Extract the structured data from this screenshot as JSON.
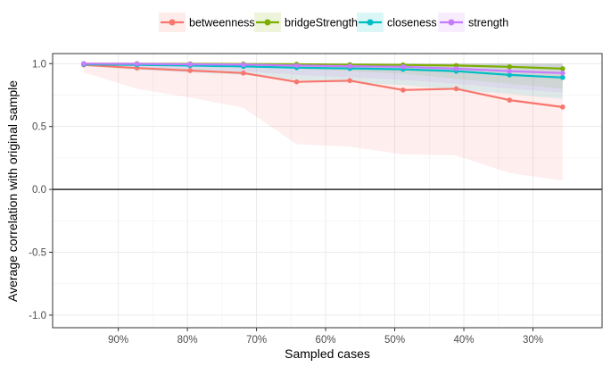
{
  "chart_data": {
    "type": "line",
    "title": "",
    "xlabel": "Sampled cases",
    "ylabel": "Average correlation with original sample",
    "x_reversed": true,
    "xlim": [
      0.2,
      0.995
    ],
    "ylim": [
      -1.1,
      1.08
    ],
    "x_ticks": [
      {
        "value": 0.9,
        "label": "90%"
      },
      {
        "value": 0.8,
        "label": "80%"
      },
      {
        "value": 0.7,
        "label": "70%"
      },
      {
        "value": 0.6,
        "label": "60%"
      },
      {
        "value": 0.5,
        "label": "50%"
      },
      {
        "value": 0.4,
        "label": "40%"
      },
      {
        "value": 0.3,
        "label": "30%"
      }
    ],
    "y_ticks": [
      {
        "value": 1.0,
        "label": "1.0"
      },
      {
        "value": 0.5,
        "label": "0.5"
      },
      {
        "value": 0.0,
        "label": "0.0"
      },
      {
        "value": -0.5,
        "label": "-0.5"
      },
      {
        "value": -1.0,
        "label": "-1.0"
      }
    ],
    "hline": 0,
    "legend_position": "top",
    "x": [
      0.95,
      0.873,
      0.796,
      0.719,
      0.642,
      0.565,
      0.488,
      0.411,
      0.334,
      0.257
    ],
    "series": [
      {
        "name": "betweenness",
        "color": "#F8766D",
        "values": [
          0.99,
          0.965,
          0.945,
          0.925,
          0.855,
          0.865,
          0.79,
          0.8,
          0.71,
          0.655
        ],
        "lower": [
          0.93,
          0.8,
          0.73,
          0.65,
          0.36,
          0.34,
          0.28,
          0.27,
          0.13,
          0.07
        ],
        "upper": [
          1.0,
          1.0,
          1.0,
          1.0,
          1.0,
          1.0,
          1.0,
          1.0,
          1.0,
          1.0
        ]
      },
      {
        "name": "bridgeStrength",
        "color": "#7CAE00",
        "values": [
          1.0,
          1.0,
          0.998,
          0.997,
          0.995,
          0.992,
          0.99,
          0.985,
          0.975,
          0.96
        ],
        "lower": [
          1.0,
          0.99,
          0.985,
          0.975,
          0.96,
          0.94,
          0.92,
          0.88,
          0.84,
          0.8
        ],
        "upper": [
          1.0,
          1.0,
          1.0,
          1.0,
          1.0,
          1.0,
          1.0,
          1.0,
          1.0,
          1.0
        ]
      },
      {
        "name": "closeness",
        "color": "#00BFC4",
        "values": [
          0.995,
          0.99,
          0.985,
          0.978,
          0.968,
          0.962,
          0.955,
          0.94,
          0.91,
          0.89
        ],
        "lower": [
          0.98,
          0.95,
          0.93,
          0.91,
          0.87,
          0.85,
          0.83,
          0.79,
          0.76,
          0.72
        ],
        "upper": [
          1.0,
          1.0,
          1.0,
          1.0,
          1.0,
          1.0,
          1.0,
          1.0,
          1.0,
          1.0
        ]
      },
      {
        "name": "strength",
        "color": "#C77CFF",
        "values": [
          1.0,
          0.998,
          0.995,
          0.992,
          0.985,
          0.98,
          0.975,
          0.96,
          0.94,
          0.925
        ],
        "lower": [
          0.99,
          0.97,
          0.955,
          0.94,
          0.91,
          0.89,
          0.87,
          0.84,
          0.8,
          0.77
        ],
        "upper": [
          1.0,
          1.0,
          1.0,
          1.0,
          1.0,
          1.0,
          1.0,
          1.0,
          1.0,
          1.0
        ]
      }
    ]
  }
}
